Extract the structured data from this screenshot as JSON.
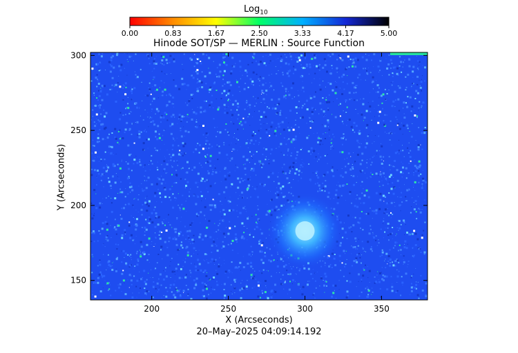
{
  "colorbar": {
    "label_main": "Log",
    "label_sub": "10",
    "ticks": [
      "0.00",
      "0.83",
      "1.67",
      "2.50",
      "3.33",
      "4.17",
      "5.00"
    ],
    "colormap": [
      "#ff0000",
      "#ff8c00",
      "#ffff00",
      "#00ff66",
      "#00b0ff",
      "#1428d6",
      "#000000"
    ]
  },
  "chart_data": {
    "type": "heatmap",
    "title": "Hinode SOT/SP — MERLIN : Source Function",
    "xlabel": "X (Arcseconds)",
    "ylabel": "Y (Arcseconds)",
    "xlim": [
      160,
      380
    ],
    "ylim": [
      137,
      302
    ],
    "x_ticks": [
      200,
      250,
      300,
      350
    ],
    "y_ticks": [
      150,
      200,
      250,
      300
    ],
    "value_range": [
      0.0,
      5.0
    ],
    "background_level": 4.0,
    "features": [
      {
        "kind": "bright-region",
        "x": 300,
        "y": 183,
        "level": 3.1
      }
    ]
  },
  "timestamp": "20–May–2025 04:09:14.192"
}
